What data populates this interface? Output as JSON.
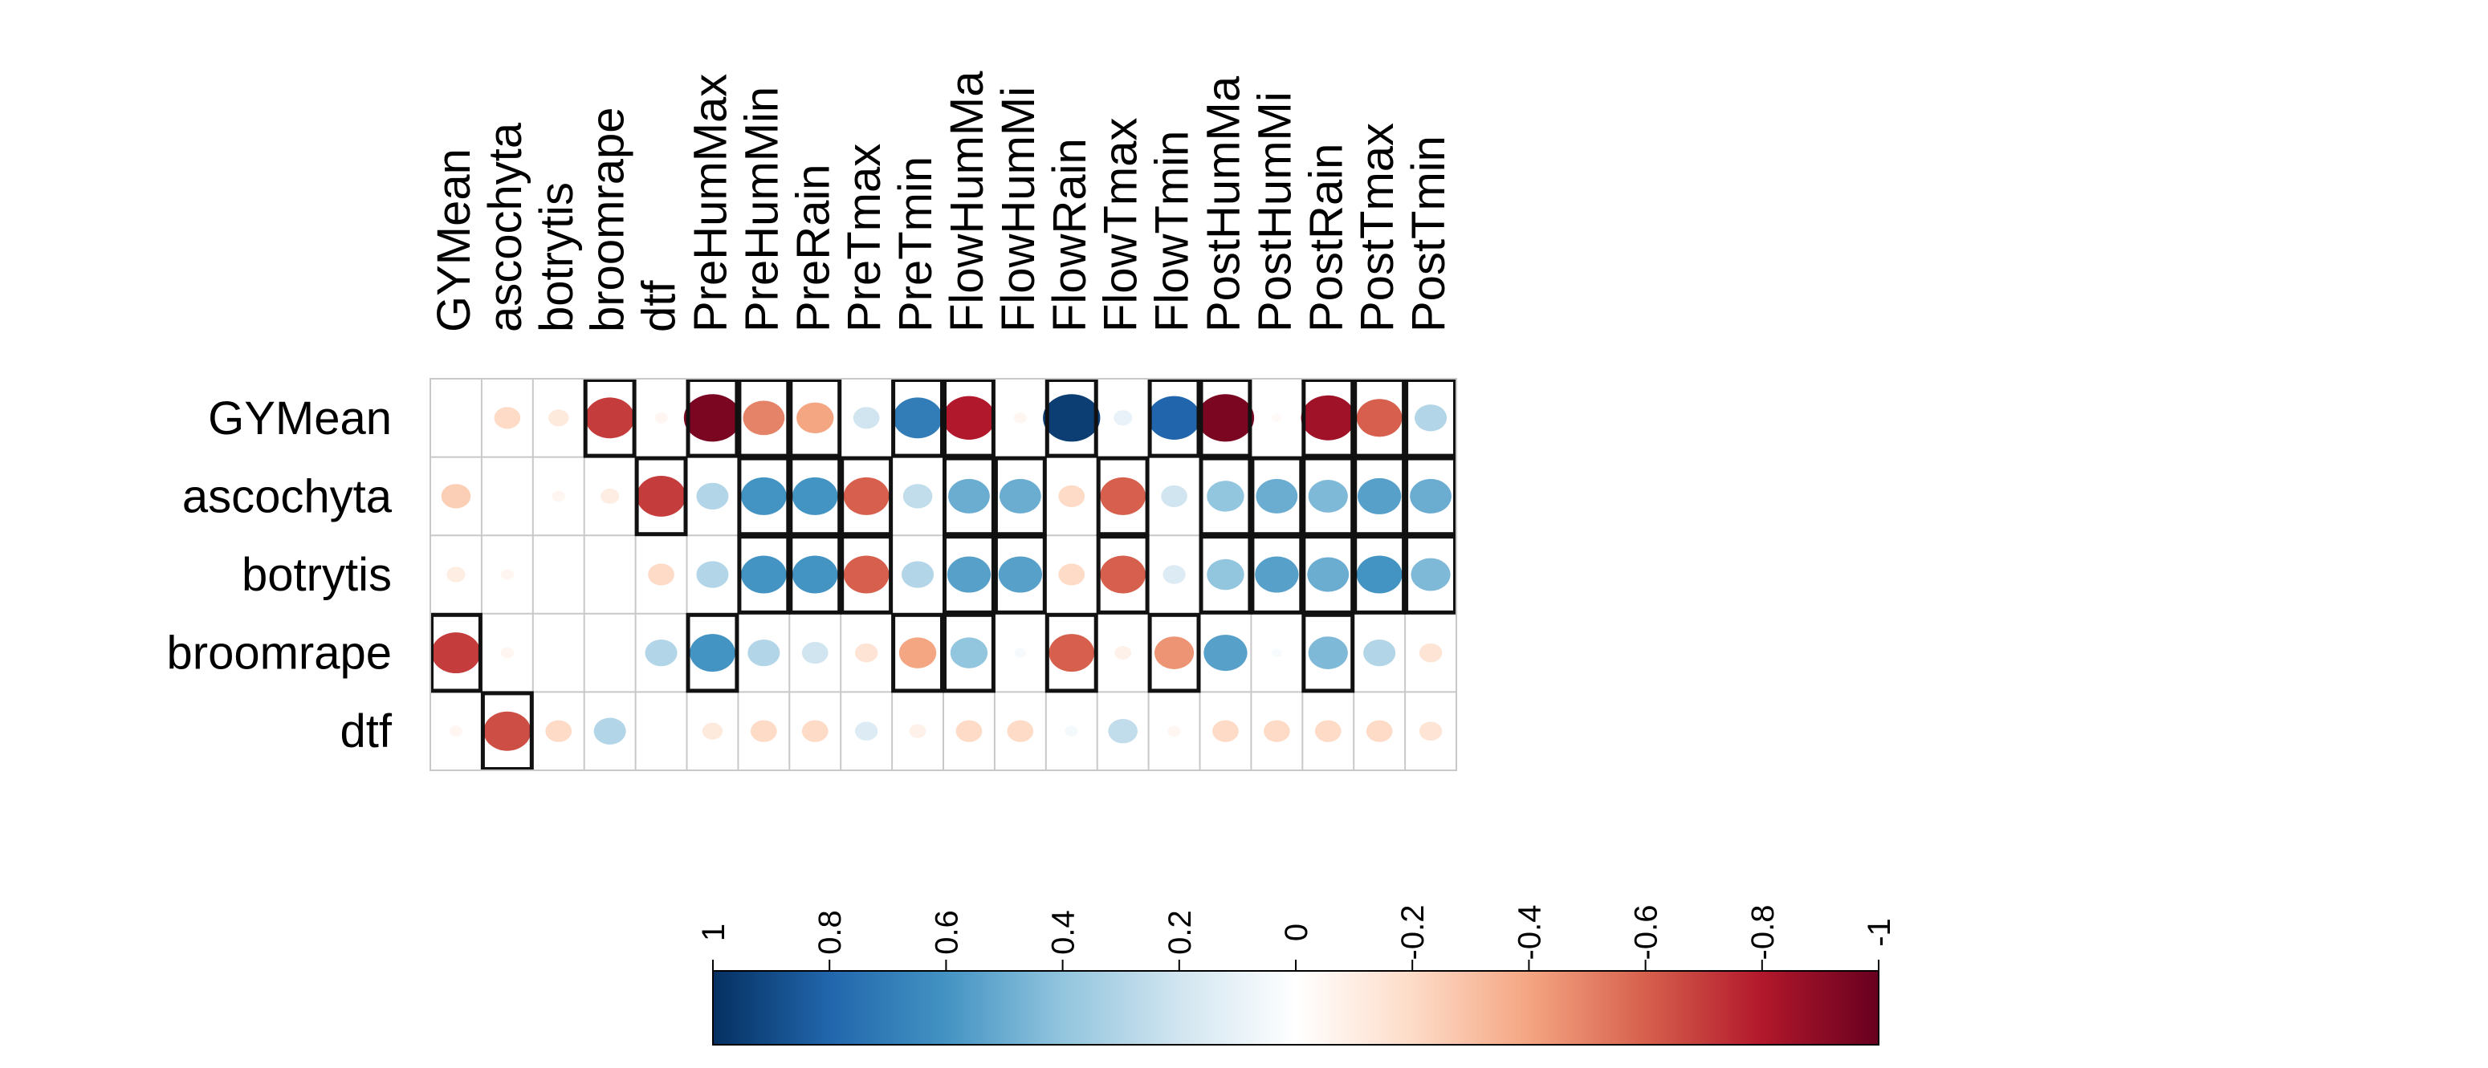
{
  "chart_data": {
    "type": "heatmap",
    "style": "correlation-circles",
    "columns": [
      "GYMean",
      "ascochyta",
      "botrytis",
      "broomrape",
      "dtf",
      "PreHumMax",
      "PreHumMin",
      "PreRain",
      "PreTmax",
      "PreTmin",
      "FlowHumMa",
      "FlowHumMi",
      "FlowRain",
      "FlowTmax",
      "FlowTmin",
      "PostHumMa",
      "PostHumMi",
      "PostRain",
      "PostTmax",
      "PostTmin"
    ],
    "rows": [
      "GYMean",
      "ascochyta",
      "botrytis",
      "broomrape",
      "dtf"
    ],
    "values": [
      [
        null,
        -0.2,
        -0.12,
        -0.7,
        -0.05,
        -0.95,
        -0.5,
        -0.4,
        0.2,
        0.7,
        -0.8,
        -0.05,
        0.95,
        0.1,
        0.8,
        -0.95,
        -0.03,
        -0.85,
        -0.6,
        0.3
      ],
      [
        -0.25,
        null,
        -0.05,
        -0.1,
        -0.7,
        0.3,
        0.6,
        0.6,
        -0.6,
        0.25,
        0.5,
        0.5,
        -0.2,
        -0.6,
        0.2,
        0.4,
        0.5,
        0.45,
        0.55,
        0.5
      ],
      [
        -0.1,
        -0.05,
        null,
        null,
        -0.2,
        0.3,
        0.6,
        0.6,
        -0.6,
        0.3,
        0.55,
        0.55,
        -0.2,
        -0.6,
        0.15,
        0.4,
        0.55,
        0.5,
        0.6,
        0.45
      ],
      [
        -0.7,
        -0.05,
        null,
        null,
        0.3,
        0.6,
        0.3,
        0.2,
        -0.15,
        -0.4,
        0.4,
        0.04,
        -0.6,
        -0.08,
        -0.45,
        0.55,
        0.03,
        0.45,
        0.3,
        -0.15
      ],
      [
        -0.05,
        -0.65,
        -0.2,
        0.3,
        null,
        -0.12,
        -0.2,
        -0.2,
        0.15,
        -0.08,
        -0.2,
        -0.2,
        0.05,
        0.25,
        -0.05,
        -0.2,
        -0.2,
        -0.2,
        -0.2,
        -0.15
      ]
    ],
    "significant": [
      [
        3,
        5,
        6,
        7,
        9,
        10,
        12,
        14,
        15,
        17,
        18,
        19
      ],
      [
        4,
        6,
        7,
        8,
        10,
        11,
        13,
        15,
        16,
        17,
        18,
        19
      ],
      [
        6,
        7,
        8,
        10,
        11,
        13,
        15,
        16,
        17,
        18,
        19
      ],
      [
        0,
        5,
        9,
        10,
        12,
        14,
        17
      ],
      [
        1
      ]
    ],
    "colorbar": {
      "ticks": [
        "1",
        "0.8",
        "0.6",
        "0.4",
        "0.2",
        "0",
        "-0.2",
        "-0.4",
        "-0.6",
        "-0.8",
        "-1"
      ],
      "tick_values": [
        1,
        0.8,
        0.6,
        0.4,
        0.2,
        0,
        -0.2,
        -0.4,
        -0.6,
        -0.8,
        -1
      ],
      "range": [
        1,
        -1
      ],
      "orientation": "horizontal"
    },
    "colors": {
      "scale": [
        "#053061",
        "#2166ac",
        "#4393c3",
        "#92c5de",
        "#d1e5f0",
        "#ffffff",
        "#fddbc7",
        "#f4a582",
        "#d6604d",
        "#b2182b",
        "#67001f"
      ],
      "grid": "#c8c8c8",
      "sig_border": "#111111"
    }
  }
}
